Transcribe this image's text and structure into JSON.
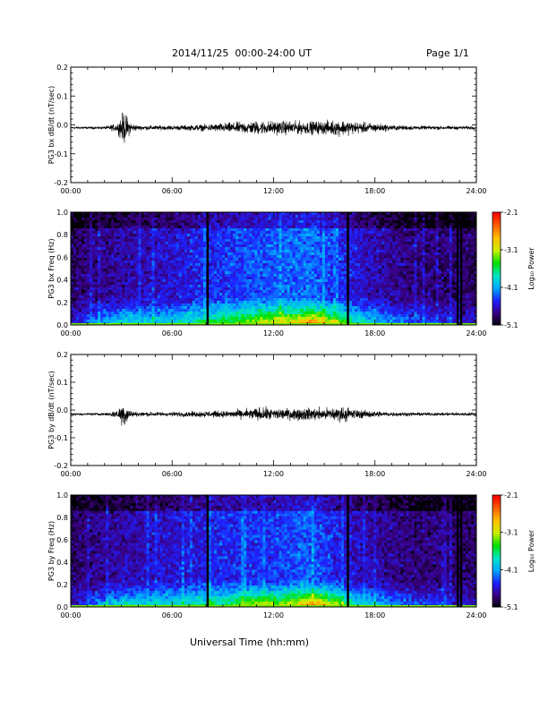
{
  "header": {
    "title": "2014/11/25  00:00-24:00 UT",
    "page": "Page 1/1"
  },
  "footer": {
    "xlabel": "Universal Time (hh:mm)"
  },
  "colors": {
    "trace": "#000000",
    "colormap": [
      "#000000",
      "#3a0082",
      "#1e20ff",
      "#00a8ff",
      "#00e6c8",
      "#00e000",
      "#c8f000",
      "#ffc000",
      "#ff6000",
      "#ff0000"
    ]
  },
  "chart_data": [
    {
      "type": "line",
      "ylabel": "PG3 bx dB/dt (nT/sec)",
      "xticks": [
        "00:00",
        "06:00",
        "12:00",
        "18:00",
        "24:00"
      ],
      "xlim": [
        0,
        24
      ],
      "ylim": [
        -0.2,
        0.2
      ],
      "yticks": [
        "0.2",
        "0.1",
        "0.0",
        "-0.1",
        "-0.2"
      ],
      "baseline": -0.01,
      "series": [
        {
          "x": [
            0,
            1,
            2,
            2.8,
            3.0,
            3.2,
            3.4,
            3.6,
            4,
            5,
            6,
            7,
            8,
            9,
            10,
            11,
            12,
            13,
            14,
            15,
            16,
            16.5,
            17,
            18,
            19,
            20,
            21,
            22,
            23,
            24
          ],
          "amp": [
            0.005,
            0.005,
            0.006,
            0.02,
            0.06,
            0.07,
            0.04,
            0.02,
            0.01,
            0.01,
            0.01,
            0.012,
            0.015,
            0.02,
            0.025,
            0.03,
            0.03,
            0.03,
            0.028,
            0.03,
            0.035,
            0.03,
            0.025,
            0.02,
            0.012,
            0.01,
            0.008,
            0.008,
            0.008,
            0.008
          ]
        }
      ]
    },
    {
      "type": "heatmap",
      "ylabel": "PG3 bx Freq (Hz)",
      "xticks": [
        "00:00",
        "06:00",
        "12:00",
        "18:00",
        "24:00"
      ],
      "xlim": [
        0,
        24
      ],
      "ylim": [
        0.0,
        1.0
      ],
      "yticks": [
        "1.0",
        "0.8",
        "0.6",
        "0.4",
        "0.2",
        "0.0"
      ],
      "colorbar": {
        "label": "Log₁₀ Power",
        "ticks": [
          "-2.1",
          "-3.1",
          "-4.1",
          "-5.1"
        ],
        "range": [
          -5.1,
          -2.1
        ]
      },
      "gaps_hours": [
        8.1,
        16.4,
        22.9,
        23.1
      ],
      "activity_x": [
        0,
        3,
        6,
        9,
        12,
        14,
        15,
        17,
        20,
        24
      ],
      "activity_level": [
        0.15,
        0.3,
        0.4,
        0.55,
        0.65,
        0.7,
        0.6,
        0.4,
        0.2,
        0.15
      ],
      "lowfreq_x": [
        0,
        3,
        6,
        9,
        12,
        13.5,
        14.5,
        15.5,
        17,
        20,
        24
      ],
      "lowfreq_level": [
        -4.6,
        -3.9,
        -4.1,
        -3.8,
        -3.4,
        -3.3,
        -3.0,
        -3.4,
        -3.9,
        -4.3,
        -4.6
      ]
    },
    {
      "type": "line",
      "ylabel": "PG3 by dB/dt (nT/sec)",
      "xticks": [
        "00:00",
        "06:00",
        "12:00",
        "18:00",
        "24:00"
      ],
      "xlim": [
        0,
        24
      ],
      "ylim": [
        -0.2,
        0.2
      ],
      "yticks": [
        "0.2",
        "0.1",
        "0.0",
        "-0.1",
        "-0.2"
      ],
      "baseline": -0.015,
      "series": [
        {
          "x": [
            0,
            1,
            2,
            2.8,
            3.0,
            3.2,
            3.4,
            3.6,
            4,
            5,
            6,
            7,
            8,
            9,
            10,
            11,
            12,
            13,
            14,
            15,
            16,
            16.5,
            17,
            18,
            19,
            20,
            21,
            22,
            23,
            24
          ],
          "amp": [
            0.005,
            0.005,
            0.006,
            0.02,
            0.05,
            0.06,
            0.03,
            0.015,
            0.01,
            0.01,
            0.01,
            0.012,
            0.015,
            0.015,
            0.02,
            0.03,
            0.028,
            0.025,
            0.03,
            0.028,
            0.035,
            0.03,
            0.02,
            0.015,
            0.01,
            0.008,
            0.007,
            0.007,
            0.008,
            0.008
          ]
        }
      ]
    },
    {
      "type": "heatmap",
      "ylabel": "PG3 by Freq (Hz)",
      "xticks": [
        "00:00",
        "06:00",
        "12:00",
        "18:00",
        "24:00"
      ],
      "xlim": [
        0,
        24
      ],
      "ylim": [
        0.0,
        1.0
      ],
      "yticks": [
        "1.0",
        "0.8",
        "0.6",
        "0.4",
        "0.2",
        "0.0"
      ],
      "colorbar": {
        "label": "Log₁₀ Power",
        "ticks": [
          "-2.1",
          "-3.1",
          "-4.1",
          "-5.1"
        ],
        "range": [
          -5.1,
          -2.1
        ]
      },
      "gaps_hours": [
        8.1,
        16.4,
        22.9,
        23.1
      ],
      "activity_x": [
        0,
        3,
        6,
        9,
        12,
        14,
        15,
        17,
        20,
        24
      ],
      "activity_level": [
        0.15,
        0.3,
        0.4,
        0.5,
        0.55,
        0.65,
        0.55,
        0.35,
        0.2,
        0.15
      ],
      "lowfreq_x": [
        0,
        3,
        6,
        9,
        11,
        12.5,
        14.5,
        15.5,
        17,
        20,
        24
      ],
      "lowfreq_level": [
        -4.6,
        -3.9,
        -4.0,
        -3.9,
        -3.4,
        -3.6,
        -3.0,
        -3.3,
        -3.9,
        -4.3,
        -4.6
      ]
    }
  ]
}
